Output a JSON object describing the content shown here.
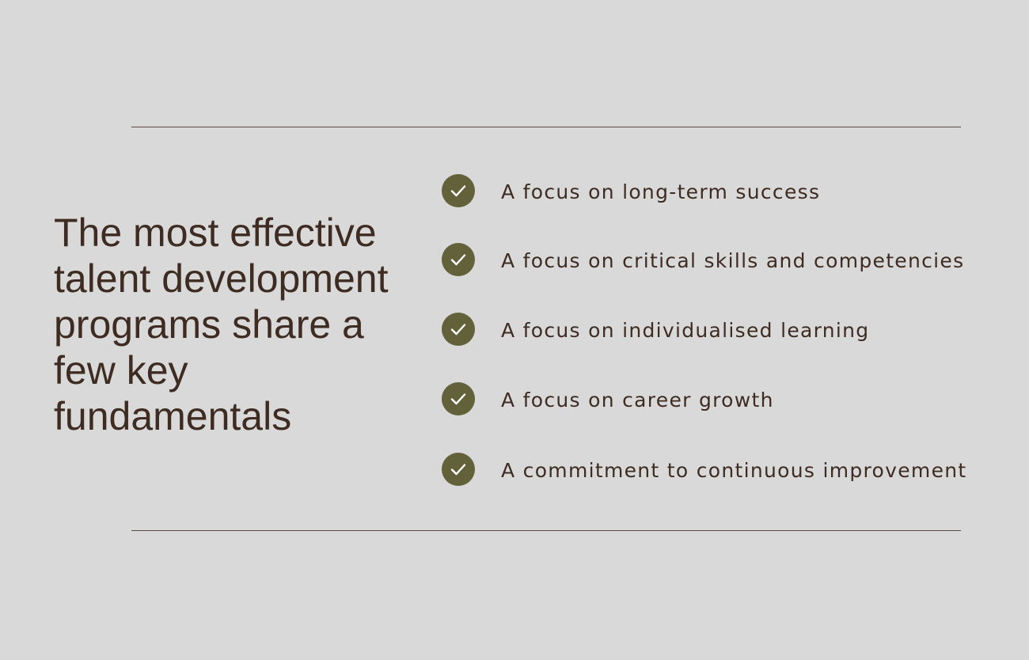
{
  "headline": "The most effective talent development programs share a few key fundamentals",
  "items": [
    {
      "label": "A focus on long-term success",
      "icon": "check-circle-icon"
    },
    {
      "label": "A focus on critical skills and competencies",
      "icon": "check-circle-icon"
    },
    {
      "label": "A focus on individualised learning",
      "icon": "check-circle-icon"
    },
    {
      "label": "A focus on career growth",
      "icon": "check-circle-icon"
    },
    {
      "label": "A commitment to continuous improvement",
      "icon": "check-circle-icon"
    }
  ],
  "colors": {
    "background": "#d9d9d9",
    "text": "#3e2c22",
    "check_fill": "#62613a",
    "rule": "#5a4a42"
  }
}
